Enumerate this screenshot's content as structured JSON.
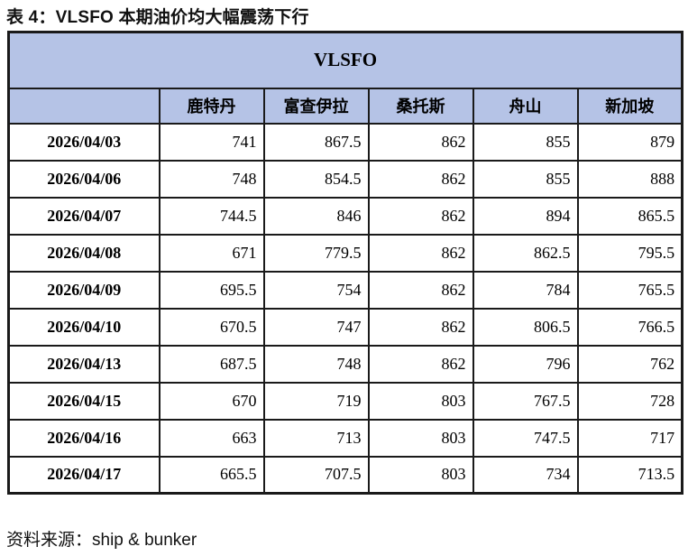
{
  "title": "表 4：VLSFO 本期油价均大幅震荡下行",
  "source": "资料来源：ship & bunker",
  "colors": {
    "header_bg": "#b5c3e6",
    "border": "#1a1a1a"
  },
  "table": {
    "banner": "VLSFO",
    "columns": [
      "",
      "鹿特丹",
      "富查伊拉",
      "桑托斯",
      "舟山",
      "新加坡"
    ],
    "rows": [
      {
        "date": "2026/04/03",
        "values": [
          741,
          867.5,
          862,
          855,
          879
        ]
      },
      {
        "date": "2026/04/06",
        "values": [
          748,
          854.5,
          862,
          855,
          888
        ]
      },
      {
        "date": "2026/04/07",
        "values": [
          744.5,
          846,
          862,
          894,
          865.5
        ]
      },
      {
        "date": "2026/04/08",
        "values": [
          671,
          779.5,
          862,
          862.5,
          795.5
        ]
      },
      {
        "date": "2026/04/09",
        "values": [
          695.5,
          754,
          862,
          784,
          765.5
        ]
      },
      {
        "date": "2026/04/10",
        "values": [
          670.5,
          747,
          862,
          806.5,
          766.5
        ]
      },
      {
        "date": "2026/04/13",
        "values": [
          687.5,
          748,
          862,
          796,
          762
        ]
      },
      {
        "date": "2026/04/15",
        "values": [
          670,
          719,
          803,
          767.5,
          728
        ]
      },
      {
        "date": "2026/04/16",
        "values": [
          663,
          713,
          803,
          747.5,
          717
        ]
      },
      {
        "date": "2026/04/17",
        "values": [
          665.5,
          707.5,
          803,
          734,
          713.5
        ]
      }
    ]
  }
}
